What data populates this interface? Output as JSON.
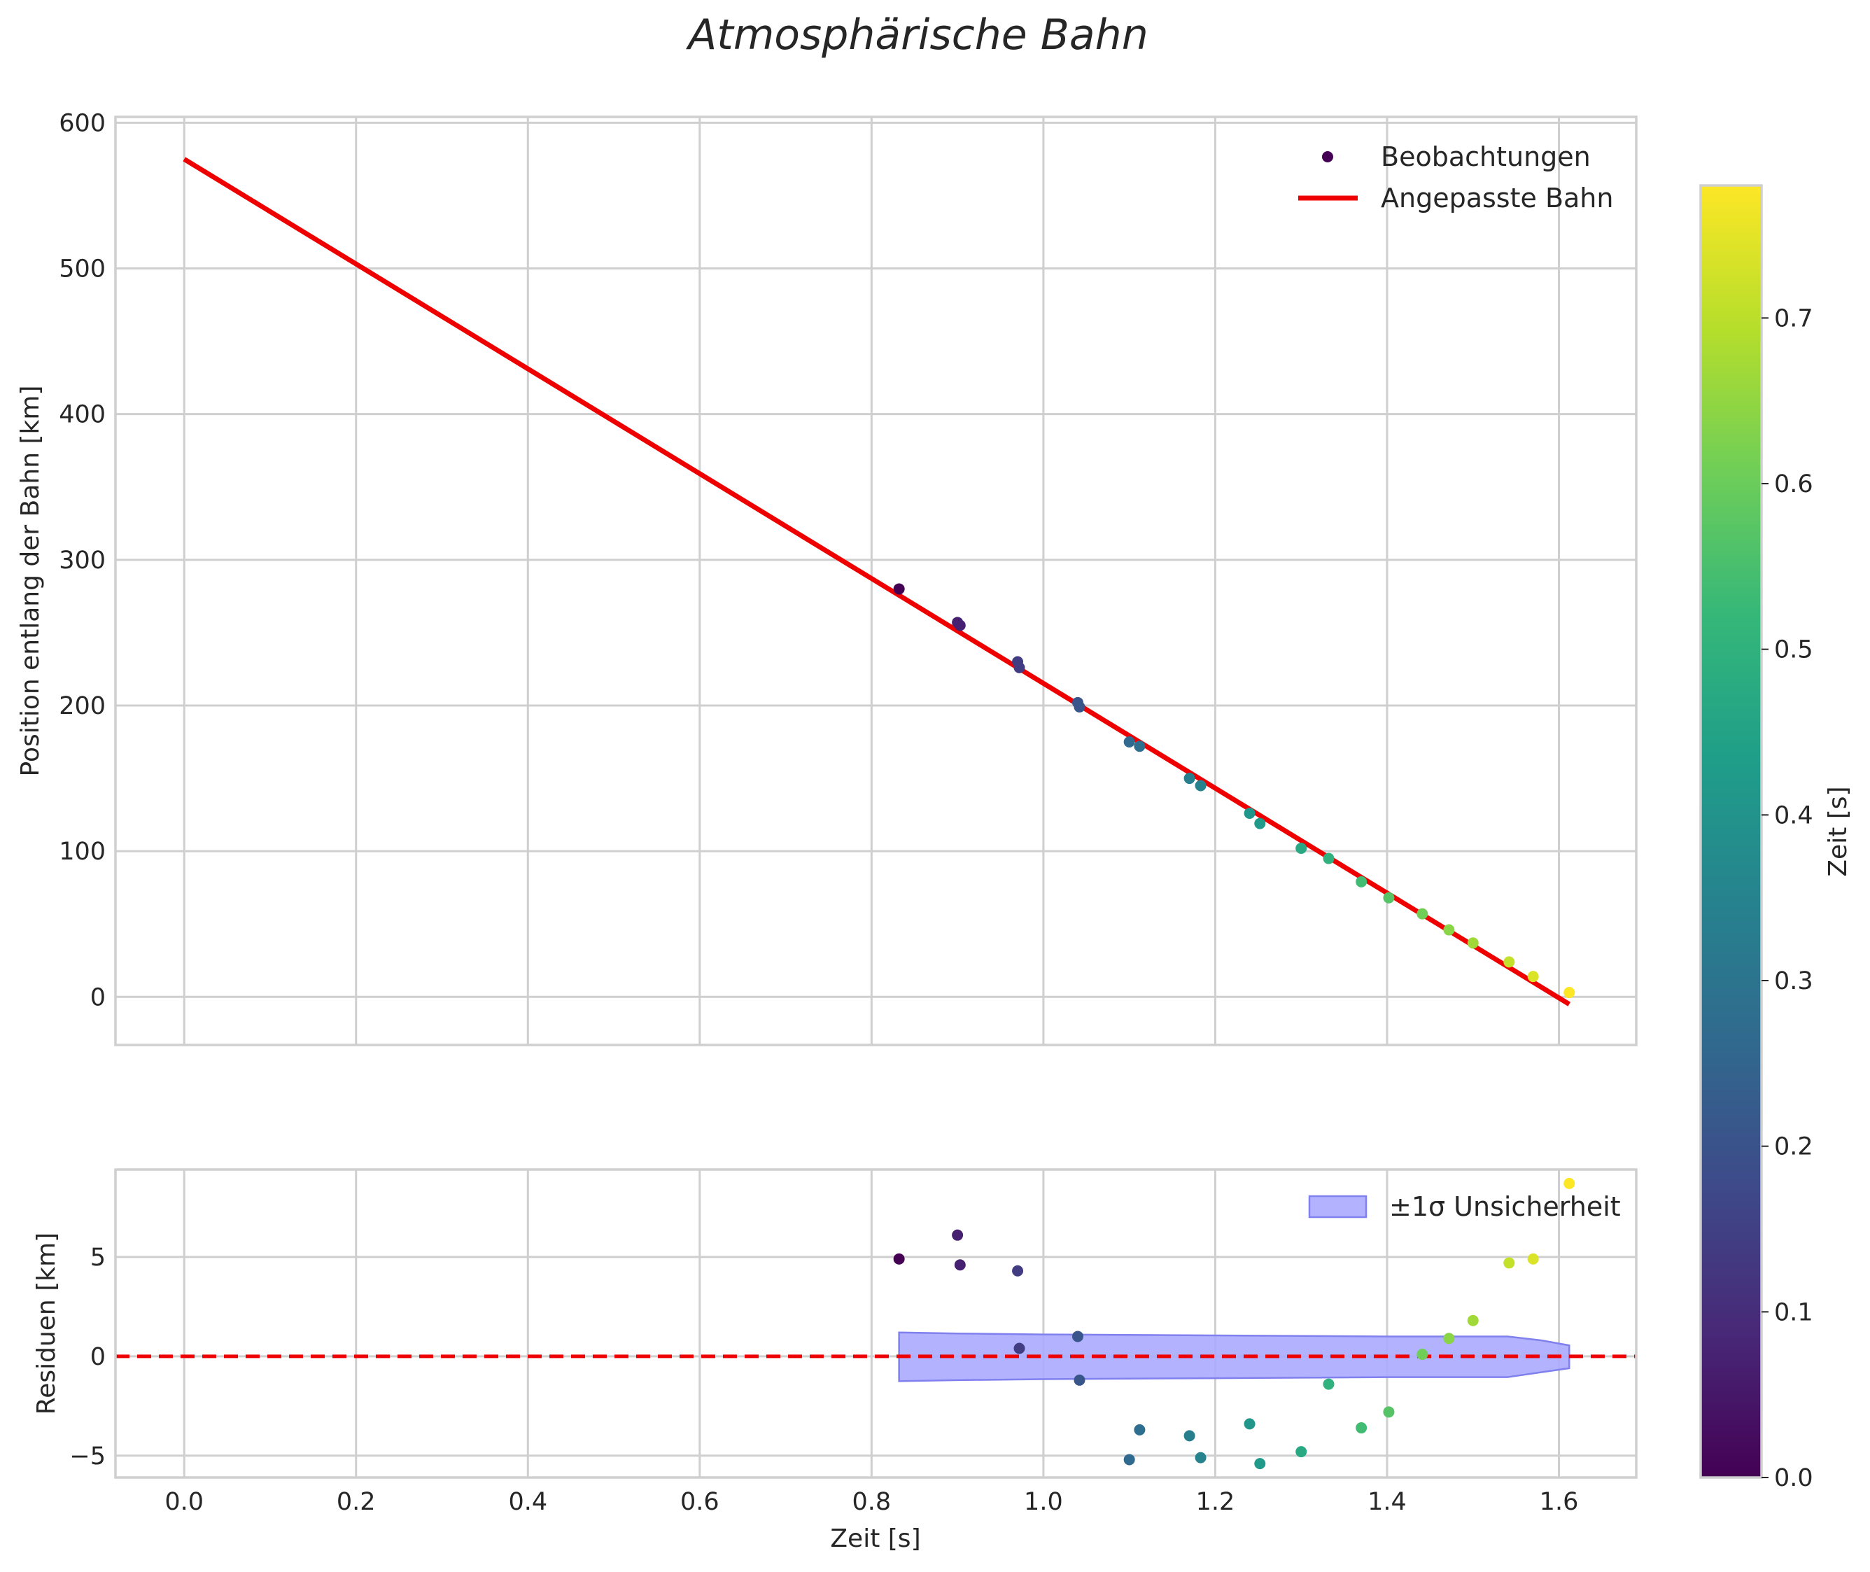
{
  "chart_data": {
    "type": "scatter",
    "title": "Atmosphärische Bahn",
    "colors": {
      "fit_line": "#ee0000",
      "zero_line": "#ee0000",
      "band_fill": "#aaaaff",
      "band_edge": "#8080ee",
      "grid": "#cfcfcf",
      "text": "#262626",
      "viridis": [
        "#440154",
        "#482878",
        "#3e4989",
        "#31688e",
        "#26828e",
        "#1f9e89",
        "#35b779",
        "#6ece58",
        "#b5de2b",
        "#fde725"
      ]
    },
    "shared_x": {
      "label": "Zeit [s]",
      "lim": [
        -0.08,
        1.69
      ],
      "ticks": [
        0.0,
        0.2,
        0.4,
        0.6,
        0.8,
        1.0,
        1.2,
        1.4,
        1.6
      ],
      "tick_labels": [
        "0.0",
        "0.2",
        "0.4",
        "0.6",
        "0.8",
        "1.0",
        "1.2",
        "1.4",
        "1.6"
      ]
    },
    "top_panel": {
      "ylabel": "Position entlang der Bahn [km]",
      "ylim": [
        -33,
        604
      ],
      "yticks": [
        0,
        100,
        200,
        300,
        400,
        500,
        600
      ],
      "ytick_labels": [
        "0",
        "100",
        "200",
        "300",
        "400",
        "500",
        "600"
      ],
      "grid": true,
      "legend_position": "upper right",
      "legend": {
        "observations": "Beobachtungen",
        "fit": "Angepasste Bahn"
      },
      "fit_line": {
        "x": [
          0.0,
          1.612
        ],
        "y": [
          575,
          -5
        ]
      }
    },
    "bottom_panel": {
      "ylabel": "Residuen [km]",
      "ylim": [
        -6.1,
        9.4
      ],
      "yticks": [
        -5,
        0,
        5
      ],
      "ytick_labels": [
        "−5",
        "0",
        "5"
      ],
      "grid": true,
      "legend_position": "upper right",
      "legend": {
        "band": "±1σ Unsicherheit"
      },
      "zero_line": 0,
      "band": {
        "x": [
          0.832,
          0.9,
          1.0,
          1.2,
          1.4,
          1.54,
          1.58,
          1.612
        ],
        "upper": [
          1.2,
          1.15,
          1.1,
          1.05,
          1.0,
          1.0,
          0.8,
          0.55
        ],
        "lower": [
          -1.25,
          -1.2,
          -1.15,
          -1.1,
          -1.05,
          -1.05,
          -0.8,
          -0.6
        ]
      }
    },
    "observations": {
      "time_s": [
        0.832,
        0.9,
        0.903,
        0.97,
        0.972,
        1.04,
        1.042,
        1.1,
        1.112,
        1.17,
        1.183,
        1.24,
        1.252,
        1.3,
        1.332,
        1.37,
        1.402,
        1.441,
        1.472,
        1.5,
        1.542,
        1.57,
        1.612
      ],
      "position_km": [
        280,
        257,
        255,
        230,
        226,
        202,
        199,
        175,
        172,
        150,
        145,
        126,
        119,
        102,
        95,
        79,
        68,
        57,
        46,
        37,
        24,
        14,
        3
      ],
      "residual_km": [
        4.9,
        6.1,
        4.6,
        4.3,
        0.4,
        1.0,
        -1.2,
        -5.2,
        -3.7,
        -4.0,
        -5.1,
        -3.4,
        -5.4,
        -4.8,
        -1.4,
        -3.6,
        -2.8,
        0.1,
        0.9,
        1.8,
        4.7,
        4.9,
        8.7
      ],
      "color_value_s": [
        0.0,
        0.068,
        0.071,
        0.138,
        0.14,
        0.208,
        0.21,
        0.268,
        0.28,
        0.338,
        0.351,
        0.408,
        0.42,
        0.468,
        0.5,
        0.538,
        0.57,
        0.609,
        0.64,
        0.668,
        0.71,
        0.738,
        0.78
      ]
    },
    "colorbar": {
      "label": "Zeit [s]",
      "lim": [
        0.0,
        0.78
      ],
      "ticks": [
        0.0,
        0.1,
        0.2,
        0.3,
        0.4,
        0.5,
        0.6,
        0.7
      ],
      "tick_labels": [
        "0.0",
        "0.1",
        "0.2",
        "0.3",
        "0.4",
        "0.5",
        "0.6",
        "0.7"
      ]
    }
  }
}
